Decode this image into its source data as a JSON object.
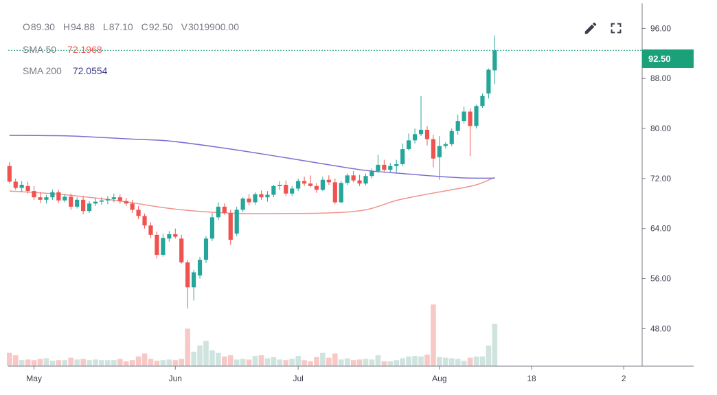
{
  "legend": {
    "ohlc": [
      {
        "key": "O",
        "value": "89.30"
      },
      {
        "key": "H",
        "value": "94.88"
      },
      {
        "key": "L",
        "value": "87.10"
      },
      {
        "key": "C",
        "value": "92.50"
      },
      {
        "key": "V",
        "value": "3019900.00"
      }
    ],
    "sma50": {
      "label": "SMA 50",
      "value": "72.1968"
    },
    "sma200": {
      "label": "SMA 200",
      "value": "72.0554"
    }
  },
  "last_price_label": "92.50",
  "icons": {
    "edit": "pencil-icon",
    "fullscreen": "fullscreen-icon"
  },
  "colors": {
    "up": "#26a69a",
    "down": "#ef5350",
    "sma50": "#ef5350",
    "sma200": "#7b6fd0",
    "last_price": "#1aa17a",
    "volume_up": "#cfe3df",
    "volume_down": "#f7c8c6"
  },
  "chart_data": {
    "type": "candlestick",
    "y_ticks": [
      "96.00",
      "88.00",
      "80.00",
      "72.00",
      "64.00",
      "56.00",
      "48.00"
    ],
    "ylim": [
      42,
      100
    ],
    "x_ticks": [
      {
        "label": "May",
        "index": 4
      },
      {
        "label": "Jun",
        "index": 27
      },
      {
        "label": "Jul",
        "index": 47
      },
      {
        "label": "Aug",
        "index": 70
      },
      {
        "label": "18",
        "index": 85
      },
      {
        "label": "2",
        "index": 100
      }
    ],
    "x_range": [
      -0.2,
      103
    ],
    "last_price": 92.5,
    "candles": [
      [
        74.0,
        74.6,
        71.2,
        71.5
      ],
      [
        71.5,
        72.0,
        70.2,
        70.5
      ],
      [
        70.5,
        71.6,
        69.8,
        71.0
      ],
      [
        70.8,
        71.5,
        69.6,
        70.0
      ],
      [
        70.0,
        70.8,
        68.6,
        69.0
      ],
      [
        69.0,
        69.8,
        68.1,
        68.6
      ],
      [
        68.6,
        69.4,
        68.0,
        69.0
      ],
      [
        69.0,
        70.2,
        68.6,
        69.8
      ],
      [
        69.8,
        70.2,
        68.1,
        68.5
      ],
      [
        68.5,
        69.5,
        68.2,
        69.1
      ],
      [
        69.1,
        69.6,
        67.0,
        67.5
      ],
      [
        67.5,
        69.0,
        67.2,
        68.6
      ],
      [
        68.6,
        69.2,
        66.3,
        66.8
      ],
      [
        66.8,
        68.4,
        66.5,
        68.0
      ],
      [
        68.0,
        68.9,
        67.6,
        68.3
      ],
      [
        68.3,
        69.0,
        67.8,
        68.5
      ],
      [
        68.5,
        69.2,
        67.9,
        68.7
      ],
      [
        68.7,
        69.6,
        68.2,
        69.0
      ],
      [
        69.0,
        69.5,
        68.0,
        68.4
      ],
      [
        68.4,
        68.9,
        67.6,
        68.0
      ],
      [
        68.0,
        68.6,
        66.5,
        67.0
      ],
      [
        67.0,
        67.6,
        65.5,
        66.0
      ],
      [
        66.0,
        66.4,
        64.0,
        64.5
      ],
      [
        64.5,
        65.0,
        62.5,
        63.0
      ],
      [
        63.0,
        63.5,
        59.2,
        59.8
      ],
      [
        59.8,
        63.2,
        59.5,
        62.5
      ],
      [
        62.4,
        63.6,
        61.9,
        63.1
      ],
      [
        63.1,
        64.0,
        62.4,
        62.7
      ],
      [
        62.4,
        63.0,
        58.4,
        58.6
      ],
      [
        58.6,
        59.0,
        51.2,
        54.6
      ],
      [
        54.6,
        57.4,
        52.5,
        57.0
      ],
      [
        56.5,
        59.5,
        56.0,
        59.0
      ],
      [
        59.0,
        62.8,
        58.5,
        62.4
      ],
      [
        62.4,
        66.5,
        62.0,
        65.8
      ],
      [
        65.8,
        68.2,
        65.4,
        67.5
      ],
      [
        67.5,
        68.0,
        66.2,
        66.5
      ],
      [
        66.5,
        67.0,
        61.4,
        62.2
      ],
      [
        63.2,
        67.5,
        62.8,
        67.0
      ],
      [
        67.0,
        69.0,
        66.6,
        68.8
      ],
      [
        68.8,
        69.5,
        67.7,
        68.2
      ],
      [
        68.2,
        69.8,
        67.8,
        69.5
      ],
      [
        69.5,
        70.1,
        68.6,
        69.0
      ],
      [
        69.0,
        70.0,
        68.3,
        69.4
      ],
      [
        69.4,
        71.0,
        69.0,
        70.8
      ],
      [
        70.8,
        71.6,
        70.2,
        71.0
      ],
      [
        71.0,
        71.7,
        69.2,
        69.6
      ],
      [
        69.6,
        70.8,
        69.2,
        70.4
      ],
      [
        70.4,
        72.0,
        70.0,
        71.6
      ],
      [
        71.6,
        72.3,
        70.8,
        71.2
      ],
      [
        71.2,
        72.5,
        70.6,
        70.8
      ],
      [
        70.8,
        71.3,
        69.7,
        70.2
      ],
      [
        70.2,
        72.3,
        70.0,
        71.8
      ],
      [
        71.8,
        72.5,
        71.0,
        71.4
      ],
      [
        71.4,
        72.0,
        67.9,
        68.2
      ],
      [
        68.2,
        71.6,
        68.0,
        71.3
      ],
      [
        71.3,
        72.8,
        71.0,
        72.5
      ],
      [
        72.5,
        73.2,
        71.4,
        71.7
      ],
      [
        71.7,
        72.6,
        70.8,
        71.2
      ],
      [
        71.2,
        72.8,
        70.9,
        72.4
      ],
      [
        72.4,
        73.6,
        72.0,
        73.2
      ],
      [
        73.2,
        75.8,
        72.9,
        74.2
      ],
      [
        74.2,
        75.0,
        73.0,
        73.4
      ],
      [
        73.4,
        74.5,
        73.0,
        74.0
      ],
      [
        74.0,
        75.0,
        73.0,
        74.3
      ],
      [
        74.3,
        77.6,
        74.0,
        76.7
      ],
      [
        76.7,
        79.2,
        76.5,
        78.1
      ],
      [
        78.1,
        80.0,
        77.6,
        79.1
      ],
      [
        79.1,
        85.2,
        78.8,
        79.8
      ],
      [
        79.8,
        80.4,
        77.3,
        78.3
      ],
      [
        78.3,
        79.0,
        73.8,
        75.2
      ],
      [
        75.4,
        78.8,
        71.8,
        77.2
      ],
      [
        77.2,
        77.8,
        76.8,
        77.5
      ],
      [
        77.5,
        80.0,
        77.2,
        79.6
      ],
      [
        79.6,
        82.2,
        79.0,
        81.2
      ],
      [
        81.2,
        83.5,
        80.8,
        82.7
      ],
      [
        82.7,
        83.2,
        75.6,
        80.4
      ],
      [
        80.4,
        83.8,
        80.0,
        83.6
      ],
      [
        83.6,
        85.6,
        83.3,
        85.2
      ],
      [
        85.6,
        89.6,
        84.8,
        89.4
      ],
      [
        89.3,
        94.88,
        87.1,
        92.5
      ]
    ],
    "volume_ylim": [
      0,
      10
    ],
    "volume": [
      2.2,
      1.8,
      1.0,
      1.1,
      1.0,
      1.2,
      1.3,
      0.9,
      1.0,
      1.0,
      1.4,
      1.1,
      1.2,
      1.0,
      1.1,
      1.0,
      1.0,
      1.0,
      1.2,
      0.8,
      1.0,
      1.6,
      2.1,
      1.2,
      0.9,
      1.0,
      1.1,
      1.0,
      1.2,
      6.2,
      2.4,
      3.4,
      4.2,
      2.6,
      2.2,
      1.6,
      1.8,
      1.1,
      1.2,
      1.1,
      1.7,
      1.8,
      1.3,
      1.5,
      1.1,
      1.0,
      1.2,
      1.7,
      1.0,
      0.8,
      1.5,
      2.2,
      1.4,
      2.1,
      1.1,
      1.3,
      1.0,
      1.1,
      1.2,
      1.1,
      1.8,
      0.8,
      0.8,
      1.0,
      1.3,
      1.6,
      1.7,
      1.6,
      1.9,
      10.2,
      1.5,
      1.4,
      1.3,
      1.2,
      0.9,
      1.4,
      1.6,
      1.6,
      3.4,
      7.0
    ],
    "sma50": [
      [
        0,
        70.0
      ],
      [
        8,
        69.5
      ],
      [
        18,
        68.4
      ],
      [
        24,
        67.5
      ],
      [
        28,
        67.0
      ],
      [
        33,
        66.6
      ],
      [
        38,
        66.4
      ],
      [
        43,
        66.4
      ],
      [
        52,
        66.5
      ],
      [
        58,
        67.0
      ],
      [
        63,
        68.5
      ],
      [
        68,
        69.5
      ],
      [
        72,
        70.2
      ],
      [
        76,
        71.0
      ],
      [
        79,
        72.1968
      ]
    ],
    "sma200": [
      [
        0,
        78.9
      ],
      [
        10,
        78.8
      ],
      [
        20,
        78.3
      ],
      [
        26,
        78.0
      ],
      [
        34,
        77.0
      ],
      [
        42,
        75.8
      ],
      [
        52,
        74.2
      ],
      [
        58,
        73.3
      ],
      [
        64,
        72.8
      ],
      [
        69,
        72.4
      ],
      [
        74,
        72.1
      ],
      [
        79,
        72.0554
      ]
    ]
  }
}
